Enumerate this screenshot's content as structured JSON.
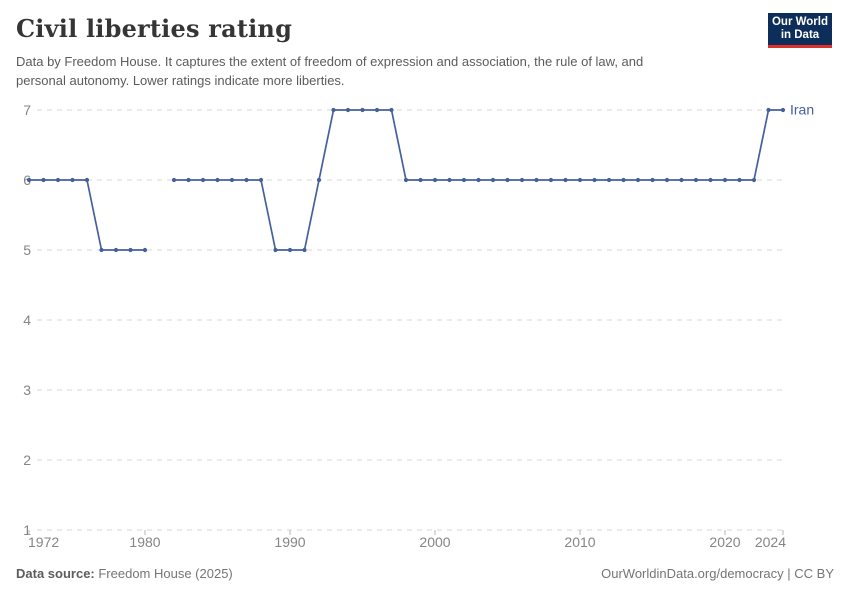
{
  "header": {
    "title": "Civil liberties rating",
    "subtitle_lines": [
      "Data by Freedom House. It captures the extent of freedom of expression and association, the rule of law, and",
      "personal autonomy. Lower ratings indicate more liberties."
    ],
    "logo": {
      "line1": "Our World",
      "line2": "in Data"
    }
  },
  "footer": {
    "source_label": "Data source:",
    "source_value": " Freedom House (2025)",
    "right_text": "OurWorldinData.org/democracy | CC BY"
  },
  "colors": {
    "line": "#44609b",
    "grid": "#d7d7d7",
    "tick": "#b5b5b5",
    "axis_label": "#858585",
    "logo_bg": "#0d2e5a",
    "logo_red": "#dc322a"
  },
  "chart_data": {
    "type": "line",
    "title": "Civil liberties rating",
    "xlabel": "",
    "ylabel": "",
    "ylim": [
      1,
      7
    ],
    "yticks": [
      1,
      2,
      3,
      4,
      5,
      6,
      7
    ],
    "xticks": [
      1972,
      1980,
      1990,
      2000,
      2010,
      2020,
      2024
    ],
    "grid": "horizontal-dashed",
    "legend": "end-of-line-label",
    "note_missing_years": [
      1981
    ],
    "x": [
      1972,
      1973,
      1974,
      1975,
      1976,
      1977,
      1978,
      1979,
      1980,
      1981,
      1982,
      1983,
      1984,
      1985,
      1986,
      1987,
      1988,
      1989,
      1990,
      1991,
      1992,
      1993,
      1994,
      1995,
      1996,
      1997,
      1998,
      1999,
      2000,
      2001,
      2002,
      2003,
      2004,
      2005,
      2006,
      2007,
      2008,
      2009,
      2010,
      2011,
      2012,
      2013,
      2014,
      2015,
      2016,
      2017,
      2018,
      2019,
      2020,
      2021,
      2022,
      2023,
      2024
    ],
    "series": [
      {
        "name": "Iran",
        "color": "#44609b",
        "values": [
          6,
          6,
          6,
          6,
          6,
          5,
          5,
          5,
          5,
          null,
          6,
          6,
          6,
          6,
          6,
          6,
          6,
          5,
          5,
          5,
          6,
          7,
          7,
          7,
          7,
          7,
          6,
          6,
          6,
          6,
          6,
          6,
          6,
          6,
          6,
          6,
          6,
          6,
          6,
          6,
          6,
          6,
          6,
          6,
          6,
          6,
          6,
          6,
          6,
          6,
          6,
          7,
          7
        ]
      }
    ]
  }
}
